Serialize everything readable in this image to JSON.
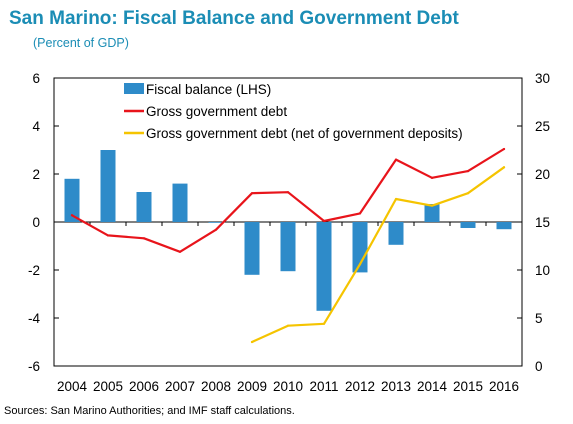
{
  "chart_data": {
    "type": "bar",
    "title": "San Marino: Fiscal Balance and Government Debt",
    "subtitle": "(Percent of GDP)",
    "categories": [
      "2004",
      "2005",
      "2006",
      "2007",
      "2008",
      "2009",
      "2010",
      "2011",
      "2012",
      "2013",
      "2014",
      "2015",
      "2016"
    ],
    "series": [
      {
        "name": "Fiscal balance (LHS)",
        "kind": "bar",
        "axis": "left",
        "color": "#2E8BC9",
        "values": [
          1.8,
          3.0,
          1.25,
          1.6,
          0.0,
          -2.2,
          -2.05,
          -3.7,
          -2.1,
          -0.95,
          0.75,
          -0.25,
          -0.3
        ]
      },
      {
        "name": "Gross government debt",
        "kind": "line",
        "axis": "right",
        "color": "#E8141B",
        "values": [
          15.7,
          13.6,
          13.3,
          11.9,
          14.2,
          18.0,
          18.1,
          15.1,
          15.9,
          21.5,
          19.6,
          20.3,
          22.6
        ]
      },
      {
        "name": "Gross government debt (net of government deposits)",
        "kind": "line",
        "axis": "right",
        "color": "#F5C400",
        "values": [
          null,
          null,
          null,
          null,
          null,
          2.5,
          4.2,
          4.4,
          10.6,
          17.4,
          16.7,
          18.0,
          20.7
        ]
      }
    ],
    "y_left": {
      "min": -6,
      "max": 6,
      "ticks": [
        -6,
        -4,
        -2,
        0,
        2,
        4,
        6
      ]
    },
    "y_right": {
      "min": 0,
      "max": 30,
      "ticks": [
        0,
        5,
        10,
        15,
        20,
        25,
        30
      ]
    },
    "legend_position": "top",
    "grid": false,
    "source": "Sources: San Marino Authorities; and IMF staff calculations."
  }
}
